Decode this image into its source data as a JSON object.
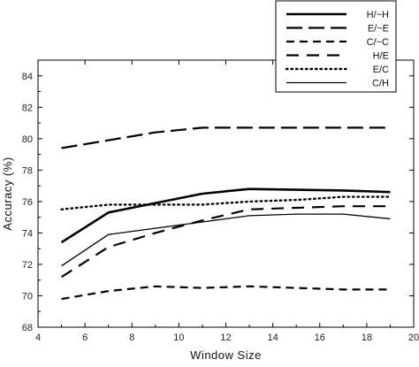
{
  "chart_data": {
    "type": "line",
    "xlabel": "Window Size",
    "ylabel": "Accuracy (%)",
    "xlim": [
      4,
      20
    ],
    "ylim": [
      68,
      85
    ],
    "xticks": [
      4,
      6,
      8,
      10,
      12,
      14,
      16,
      18,
      20
    ],
    "xtick_labels": [
      "4",
      "6",
      "8",
      "10",
      "12",
      "14",
      "16",
      "18",
      "20"
    ],
    "yticks": [
      68,
      70,
      72,
      74,
      76,
      78,
      80,
      82,
      84
    ],
    "ytick_labels": [
      "68",
      "70",
      "72",
      "74",
      "76",
      "78",
      "80",
      "82",
      "84"
    ],
    "grid": false,
    "legend_position": "top-right",
    "x": [
      5,
      7,
      9,
      11,
      13,
      15,
      17,
      19
    ],
    "series": [
      {
        "name": "H/~H",
        "style": "thick-solid",
        "values": [
          73.4,
          75.3,
          75.9,
          76.5,
          76.8,
          76.75,
          76.7,
          76.6
        ]
      },
      {
        "name": "E/~E",
        "style": "long-dash",
        "values": [
          79.4,
          79.9,
          80.4,
          80.7,
          80.7,
          80.7,
          80.7,
          80.7
        ]
      },
      {
        "name": "C/~C",
        "style": "dash",
        "values": [
          69.8,
          70.3,
          70.6,
          70.5,
          70.6,
          70.5,
          70.4,
          70.4
        ]
      },
      {
        "name": "H/E",
        "style": "dash-gap",
        "values": [
          71.2,
          73.1,
          74.0,
          74.8,
          75.5,
          75.6,
          75.7,
          75.7
        ]
      },
      {
        "name": "E/C",
        "style": "dotted",
        "values": [
          75.5,
          75.8,
          75.8,
          75.8,
          76.0,
          76.1,
          76.3,
          76.3
        ]
      },
      {
        "name": "C/H",
        "style": "thin-solid",
        "values": [
          71.9,
          73.9,
          74.3,
          74.7,
          75.1,
          75.2,
          75.2,
          74.9
        ]
      }
    ]
  }
}
